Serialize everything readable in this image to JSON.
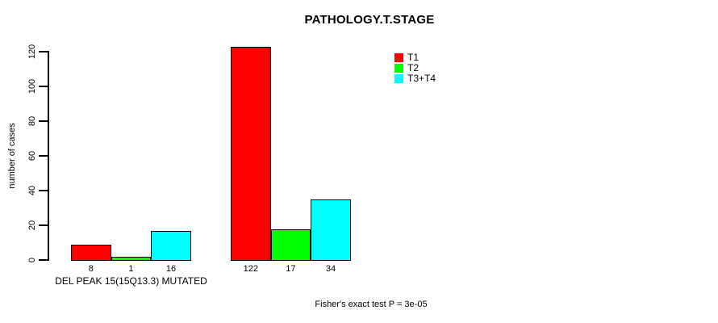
{
  "chart_data": {
    "type": "bar",
    "title": "PATHOLOGY.T.STAGE",
    "ylabel": "number of cases",
    "xlabel": "",
    "caption": "Fisher's exact test P = 3e-05",
    "categories": [
      "DEL PEAK 15(15Q13.3) MUTATED",
      ""
    ],
    "series": [
      {
        "name": "T1",
        "color": "#FF0000",
        "values": [
          8,
          122
        ]
      },
      {
        "name": "T2",
        "color": "#00FF00",
        "values": [
          1,
          17
        ]
      },
      {
        "name": "T3+T4",
        "color": "#00FFFF",
        "values": [
          16,
          34
        ]
      }
    ],
    "yticks": [
      0,
      20,
      40,
      60,
      80,
      100,
      120
    ],
    "ylim": [
      0,
      120
    ],
    "grid": false,
    "legend_position": "inside-top-right",
    "colors": {
      "axis": "#000000",
      "text": "#000000",
      "background": "#FFFFFF"
    }
  }
}
